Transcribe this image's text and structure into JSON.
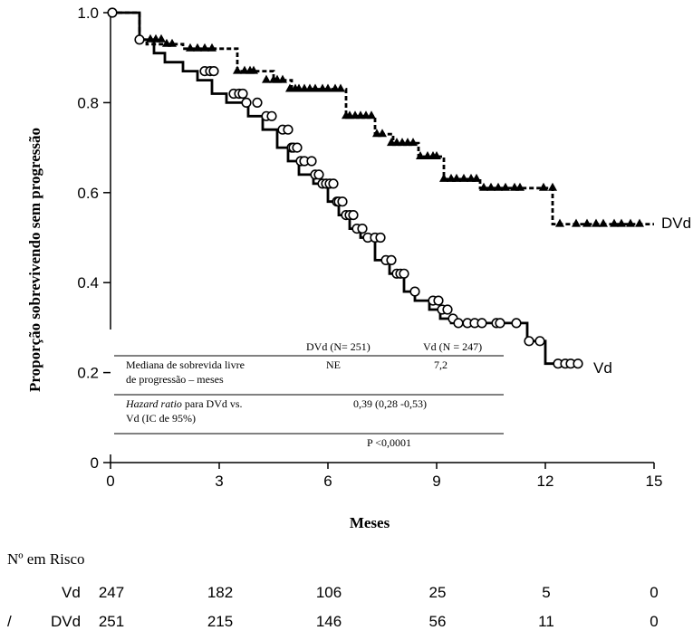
{
  "chart_data": {
    "type": "line",
    "subtype": "kaplan-meier",
    "xlabel": "Meses",
    "ylabel": "Proporção sobrevivendo sem progressão",
    "xlim": [
      0,
      15
    ],
    "ylim": [
      0,
      1.0
    ],
    "x_ticks": [
      "0",
      "3",
      "6",
      "9",
      "12",
      "15"
    ],
    "y_ticks": [
      "0",
      "0.2",
      "0.4",
      "0.6",
      "0.8",
      "1.0"
    ],
    "grid": false,
    "series": [
      {
        "name": "DVd",
        "line_style": "dashed",
        "censor_marker": "triangle",
        "x": [
          0,
          0.8,
          0.8,
          1.0,
          1.0,
          2.0,
          2.0,
          3.5,
          3.5,
          4.5,
          4.5,
          5.0,
          5.0,
          6.5,
          6.5,
          7.3,
          7.3,
          7.8,
          7.8,
          8.5,
          8.5,
          9.2,
          9.2,
          10.2,
          10.2,
          11.9,
          11.9,
          12.2,
          12.2,
          15.0
        ],
        "y": [
          1.0,
          1.0,
          0.94,
          0.94,
          0.93,
          0.93,
          0.92,
          0.92,
          0.87,
          0.87,
          0.85,
          0.85,
          0.83,
          0.83,
          0.77,
          0.77,
          0.73,
          0.73,
          0.71,
          0.71,
          0.68,
          0.68,
          0.63,
          0.63,
          0.61,
          0.61,
          0.61,
          0.61,
          0.53,
          0.53
        ],
        "censored_x": [
          1.1,
          1.25,
          1.4,
          1.55,
          1.7,
          2.2,
          2.4,
          2.6,
          2.8,
          3.5,
          3.7,
          3.85,
          3.95,
          4.3,
          4.5,
          4.6,
          4.75,
          4.95,
          5.1,
          5.2,
          5.35,
          5.5,
          5.65,
          5.85,
          6.0,
          6.2,
          6.35,
          6.5,
          6.6,
          6.75,
          6.9,
          7.05,
          7.2,
          7.35,
          7.5,
          7.75,
          7.9,
          8.05,
          8.2,
          8.35,
          8.55,
          8.75,
          8.9,
          9.0,
          9.2,
          9.4,
          9.55,
          9.75,
          9.95,
          10.1,
          10.3,
          10.5,
          10.7,
          10.9,
          11.15,
          11.3,
          11.95,
          12.2,
          12.4,
          12.85,
          13.15,
          13.4,
          13.6,
          13.9,
          14.1,
          14.35,
          14.6
        ],
        "censored_y": [
          0.94,
          0.94,
          0.94,
          0.93,
          0.93,
          0.92,
          0.92,
          0.92,
          0.92,
          0.87,
          0.87,
          0.87,
          0.87,
          0.85,
          0.85,
          0.85,
          0.85,
          0.83,
          0.83,
          0.83,
          0.83,
          0.83,
          0.83,
          0.83,
          0.83,
          0.83,
          0.83,
          0.77,
          0.77,
          0.77,
          0.77,
          0.77,
          0.77,
          0.73,
          0.73,
          0.71,
          0.71,
          0.71,
          0.71,
          0.71,
          0.68,
          0.68,
          0.68,
          0.68,
          0.63,
          0.63,
          0.63,
          0.63,
          0.63,
          0.63,
          0.61,
          0.61,
          0.61,
          0.61,
          0.61,
          0.61,
          0.61,
          0.61,
          0.53,
          0.53,
          0.53,
          0.53,
          0.53,
          0.53,
          0.53,
          0.53,
          0.53
        ]
      },
      {
        "name": "Vd",
        "line_style": "solid",
        "censor_marker": "circle",
        "x": [
          0,
          0.8,
          0.8,
          1.2,
          1.2,
          1.5,
          1.5,
          2.0,
          2.0,
          2.4,
          2.4,
          2.8,
          2.8,
          3.2,
          3.2,
          3.8,
          3.8,
          4.2,
          4.2,
          4.6,
          4.6,
          4.9,
          4.9,
          5.2,
          5.2,
          5.6,
          5.6,
          6.0,
          6.0,
          6.3,
          6.3,
          6.6,
          6.6,
          6.9,
          6.9,
          7.3,
          7.3,
          7.7,
          7.7,
          8.1,
          8.1,
          8.4,
          8.4,
          8.8,
          8.8,
          9.1,
          9.1,
          9.4,
          9.4,
          11.5,
          11.5,
          12.0,
          12.0,
          12.9
        ],
        "y": [
          1.0,
          1.0,
          0.94,
          0.94,
          0.91,
          0.91,
          0.89,
          0.89,
          0.87,
          0.87,
          0.85,
          0.85,
          0.82,
          0.82,
          0.8,
          0.8,
          0.77,
          0.77,
          0.74,
          0.74,
          0.7,
          0.7,
          0.67,
          0.67,
          0.64,
          0.64,
          0.62,
          0.62,
          0.58,
          0.58,
          0.55,
          0.55,
          0.52,
          0.52,
          0.5,
          0.5,
          0.45,
          0.45,
          0.42,
          0.42,
          0.38,
          0.38,
          0.36,
          0.36,
          0.34,
          0.34,
          0.32,
          0.32,
          0.31,
          0.31,
          0.27,
          0.27,
          0.22,
          0.22
        ],
        "censored_x": [
          0.05,
          0.8,
          2.6,
          2.75,
          2.85,
          3.4,
          3.55,
          3.65,
          3.75,
          4.05,
          4.3,
          4.45,
          4.75,
          4.9,
          5.0,
          5.05,
          5.15,
          5.25,
          5.35,
          5.55,
          5.65,
          5.75,
          5.85,
          5.95,
          6.05,
          6.15,
          6.25,
          6.3,
          6.4,
          6.5,
          6.6,
          6.7,
          6.8,
          6.95,
          7.1,
          7.3,
          7.45,
          7.6,
          7.75,
          7.9,
          8.0,
          8.1,
          8.4,
          8.9,
          9.05,
          9.15,
          9.3,
          9.45,
          9.6,
          9.85,
          10.05,
          10.25,
          10.65,
          10.75,
          11.2,
          11.55,
          11.85,
          12.35,
          12.55,
          12.7,
          12.9
        ],
        "censored_y": [
          1.0,
          0.94,
          0.87,
          0.87,
          0.87,
          0.82,
          0.82,
          0.82,
          0.8,
          0.8,
          0.77,
          0.77,
          0.74,
          0.74,
          0.7,
          0.7,
          0.7,
          0.67,
          0.67,
          0.67,
          0.64,
          0.64,
          0.62,
          0.62,
          0.62,
          0.62,
          0.58,
          0.58,
          0.58,
          0.55,
          0.55,
          0.55,
          0.52,
          0.52,
          0.5,
          0.5,
          0.5,
          0.45,
          0.45,
          0.42,
          0.42,
          0.42,
          0.38,
          0.36,
          0.36,
          0.34,
          0.34,
          0.32,
          0.31,
          0.31,
          0.31,
          0.31,
          0.31,
          0.31,
          0.31,
          0.27,
          0.27,
          0.22,
          0.22,
          0.22,
          0.22
        ]
      }
    ],
    "inset_table": {
      "header": [
        "DVd (N= 251)",
        "Vd (N = 247)"
      ],
      "row1": {
        "label_line1": "Mediana de sobrevida livre",
        "label_line2": "de progressão – meses",
        "dvd": "NE",
        "vd": "7,2"
      },
      "row2": {
        "label_line1_italic": "Hazard ratio",
        "label_line1_rest": " para DVd vs.",
        "label_line2": "Vd (IC de 95%)",
        "value": "0,39 (0,28 -0,53)"
      },
      "row3": {
        "value": "P <0,0001"
      }
    },
    "risk_table": {
      "title": "Nº em Risco",
      "stray_mark": "/",
      "rows": [
        {
          "label": "Vd",
          "values": [
            "247",
            "182",
            "106",
            "25",
            "5",
            "0"
          ]
        },
        {
          "label": "DVd",
          "values": [
            "251",
            "215",
            "146",
            "56",
            "11",
            "0"
          ]
        }
      ]
    }
  }
}
